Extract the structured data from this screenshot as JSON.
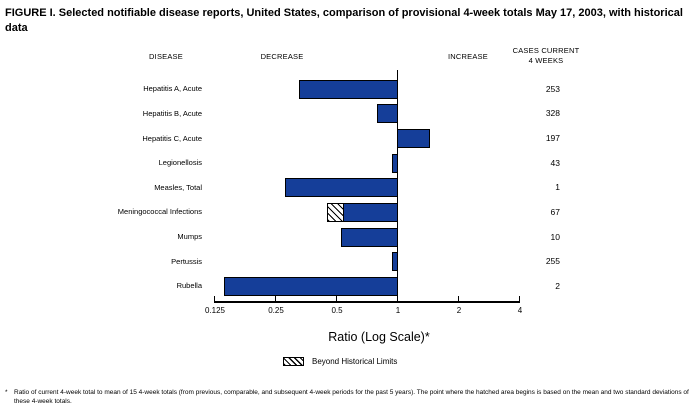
{
  "title": "FIGURE I. Selected notifiable disease reports, United States, comparison of provisional 4-week totals May 17, 2003, with historical data",
  "headers": {
    "disease": "DISEASE",
    "decrease": "DECREASE",
    "increase": "INCREASE",
    "cases_line1": "CASES CURRENT",
    "cases_line2": "4 WEEKS"
  },
  "chart_data": {
    "type": "bar",
    "orientation": "horizontal",
    "x_scale": "log",
    "xlabel": "Ratio (Log Scale)*",
    "xlim": [
      0.125,
      4
    ],
    "baseline": 1,
    "x_tick_values": [
      0.125,
      0.25,
      0.5,
      1,
      2,
      4
    ],
    "x_tick_labels": [
      "0.125",
      "0.25",
      "0.5",
      "1",
      "2",
      "4"
    ],
    "categories": [
      "Hepatitis A, Acute",
      "Hepatitis B, Acute",
      "Hepatitis C, Acute",
      "Legionellosis",
      "Measles, Total",
      "Meningococcal Infections",
      "Mumps",
      "Pertussis",
      "Rubella"
    ],
    "values": [
      0.33,
      0.8,
      1.44,
      0.95,
      0.28,
      0.45,
      0.53,
      0.94,
      0.14
    ],
    "cases_current_4_weeks": [
      "253",
      "328",
      "197",
      "43",
      "1",
      "67",
      "10",
      "255",
      "2"
    ],
    "hatch_segment": {
      "category": "Meningococcal Infections",
      "index": 5,
      "from": 0.45,
      "to": 0.55
    }
  },
  "legend": {
    "label": "Beyond Historical Limits"
  },
  "footnote": {
    "marker": "*",
    "text": "Ratio of current 4-week total to mean of 15 4-week totals (from previous, comparable, and subsequent 4-week periods for the past 5 years). The point where the hatched area begins is based on the mean and two standard deviations of these 4-week totals."
  },
  "colors": {
    "bar_fill": "#153e99",
    "bar_border": "#000000"
  }
}
